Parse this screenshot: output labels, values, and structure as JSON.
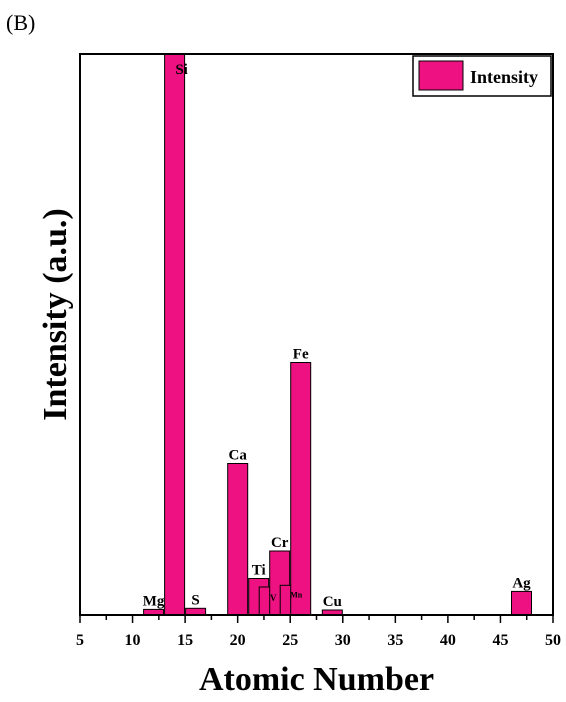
{
  "panel_label": "(B)",
  "colors": {
    "bar_fill": "#ee1181",
    "bar_stroke": "#000000",
    "axis": "#000000"
  },
  "chart_data": {
    "type": "bar",
    "xlabel": "Atomic Number",
    "ylabel": "Intensity (a.u.)",
    "xlim": [
      5,
      50
    ],
    "ylim": [
      0,
      100
    ],
    "xticks": [
      5,
      10,
      15,
      20,
      25,
      30,
      35,
      40,
      45,
      50
    ],
    "yticks_visible": false,
    "grid": false,
    "legend": {
      "position": "top-right",
      "entries": [
        "Intensity"
      ]
    },
    "series": [
      {
        "name": "Intensity",
        "points": [
          {
            "label": "Mg",
            "x": 12,
            "y": 1
          },
          {
            "label": "Si",
            "x": 14,
            "y": 100
          },
          {
            "label": "S",
            "x": 16,
            "y": 1.2
          },
          {
            "label": "Ca",
            "x": 20,
            "y": 27
          },
          {
            "label": "Ti",
            "x": 22,
            "y": 6.5
          },
          {
            "label": "V",
            "x": 23,
            "y": 5
          },
          {
            "label": "Cr",
            "x": 24,
            "y": 11.4
          },
          {
            "label": "Mn",
            "x": 25,
            "y": 5.3
          },
          {
            "label": "Fe",
            "x": 26,
            "y": 45
          },
          {
            "label": "Cu",
            "x": 29,
            "y": 0.9
          },
          {
            "label": "Ag",
            "x": 47,
            "y": 4.2
          }
        ]
      }
    ]
  }
}
